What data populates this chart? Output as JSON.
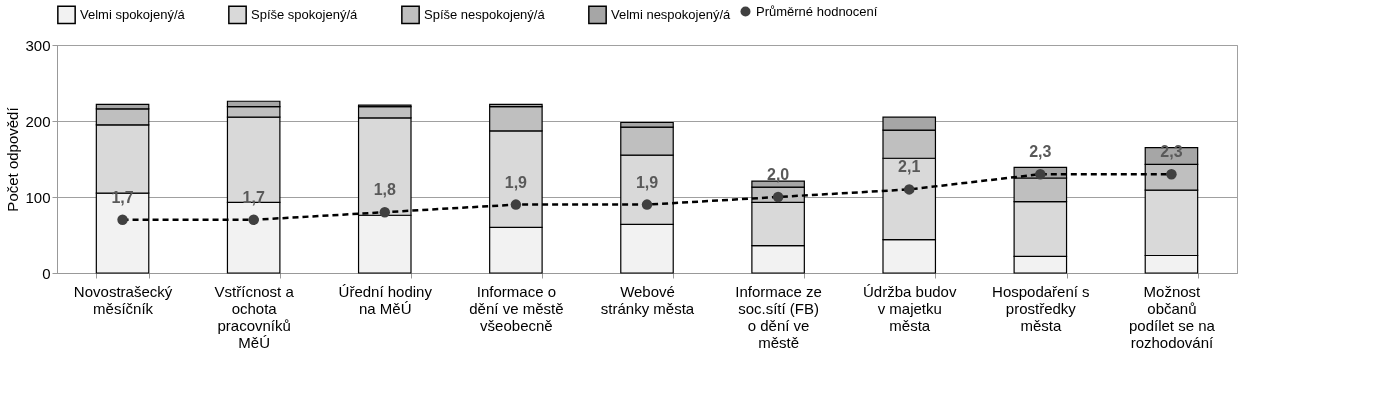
{
  "chart_data": {
    "type": "bar",
    "stacked": true,
    "ylabel": "Počet odpovědí",
    "categories": [
      "Novostrašecký měsíčník",
      "Vstřícnost a ochota pracovníků MěÚ",
      "Úřední hodiny na MěÚ",
      "Informace o dění ve městě všeobecně",
      "Webové stránky města",
      "Informace ze soc.sítí (FB) o dění ve městě",
      "Údržba budov v majetku města",
      "Hospodaření s prostředky města",
      "Možnost občanů podílet se na rozhodování"
    ],
    "series": [
      {
        "name": "Velmi spokojený/á",
        "color": "#f2f2f2",
        "values": [
          105,
          93,
          76,
          60,
          64,
          36,
          44,
          22,
          23
        ]
      },
      {
        "name": "Spíše spokojený/á",
        "color": "#d9d9d9",
        "values": [
          90,
          112,
          128,
          127,
          91,
          57,
          107,
          72,
          86
        ]
      },
      {
        "name": "Spíše nespokojený/á",
        "color": "#bfbfbf",
        "values": [
          21,
          14,
          15,
          32,
          37,
          20,
          37,
          31,
          34
        ]
      },
      {
        "name": "Velmi nespokojený/á",
        "color": "#a6a6a6",
        "values": [
          6,
          7,
          2,
          3,
          6,
          8,
          17,
          14,
          22
        ]
      },
      {
        "name": "Průměrné hodnocení",
        "type": "line",
        "axis": "y2",
        "color": "#404040",
        "marker": "circle",
        "line_style": "dashed",
        "values": [
          1.7,
          1.7,
          1.8,
          1.9,
          1.9,
          2.0,
          2.1,
          2.3,
          2.3
        ],
        "value_labels": [
          "1,7",
          "1,7",
          "1,8",
          "1,9",
          "1,9",
          "2,0",
          "2,1",
          "2,3",
          "2,3"
        ]
      }
    ],
    "ylim": [
      0,
      300
    ],
    "yticks": [
      0,
      100,
      200,
      300
    ],
    "y2lim": [
      1,
      4
    ],
    "grid": "y",
    "legend": "top"
  }
}
